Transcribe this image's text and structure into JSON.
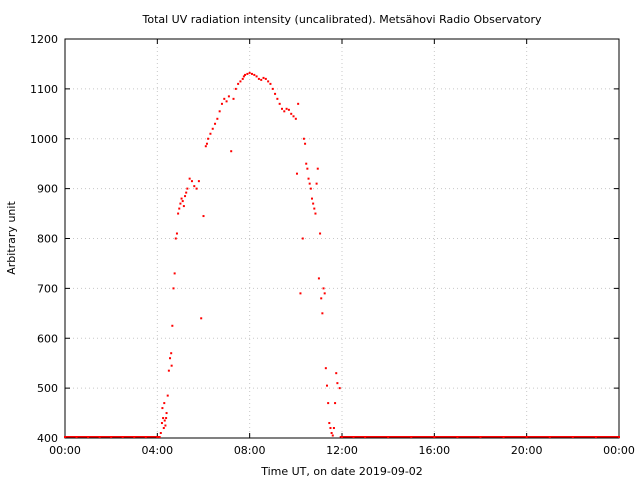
{
  "chart_data": {
    "type": "scatter",
    "title": "Total UV radiation intensity (uncalibrated). Metsähovi Radio Observatory",
    "xlabel": "Time UT, on date 2019-09-02",
    "ylabel": "Arbitrary unit",
    "xlim": [
      0,
      24
    ],
    "ylim": [
      400,
      1200
    ],
    "x_ticks": [
      0,
      4,
      8,
      12,
      16,
      20,
      24
    ],
    "x_tick_labels": [
      "00:00",
      "04:00",
      "08:00",
      "12:00",
      "16:00",
      "20:00",
      "00:00"
    ],
    "y_ticks": [
      400,
      500,
      600,
      700,
      800,
      900,
      1000,
      1100,
      1200
    ],
    "y_tick_labels": [
      "400",
      "500",
      "600",
      "700",
      "800",
      "900",
      "1000",
      "1100",
      "1200"
    ],
    "grid": true,
    "marker_color": "#ff0000",
    "series": [
      {
        "x": [
          0.0,
          0.5,
          1.0,
          1.5,
          2.0,
          2.5,
          3.0,
          3.5,
          4.0,
          4.1,
          4.15,
          4.2,
          4.22,
          4.25,
          4.28,
          4.3,
          4.32,
          4.35,
          4.38,
          4.4,
          4.45,
          4.5,
          4.55,
          4.6,
          4.62,
          4.65,
          4.7,
          4.75,
          4.8,
          4.85,
          4.9,
          4.95,
          5.0,
          5.05,
          5.1,
          5.15,
          5.2,
          5.25,
          5.3,
          5.4,
          5.5,
          5.6,
          5.7,
          5.8,
          5.9,
          6.0,
          6.1,
          6.15,
          6.2,
          6.3,
          6.4,
          6.5,
          6.6,
          6.7,
          6.8,
          6.9,
          7.0,
          7.1,
          7.2,
          7.3,
          7.4,
          7.5,
          7.6,
          7.7,
          7.75,
          7.8,
          7.9,
          8.0,
          8.1,
          8.2,
          8.3,
          8.4,
          8.5,
          8.6,
          8.7,
          8.8,
          8.9,
          9.0,
          9.1,
          9.2,
          9.3,
          9.4,
          9.5,
          9.6,
          9.7,
          9.8,
          9.9,
          10.0,
          10.05,
          10.1,
          10.2,
          10.3,
          10.35,
          10.4,
          10.45,
          10.5,
          10.55,
          10.6,
          10.65,
          10.7,
          10.75,
          10.8,
          10.85,
          10.9,
          10.95,
          11.0,
          11.05,
          11.1,
          11.15,
          11.2,
          11.25,
          11.3,
          11.35,
          11.4,
          11.45,
          11.5,
          11.55,
          11.6,
          11.65,
          11.7,
          11.75,
          11.8,
          11.9,
          12.0,
          12.5,
          13.0,
          14.0,
          15.0,
          16.0,
          17.0,
          18.0,
          19.0,
          20.0,
          21.0,
          22.0,
          23.0,
          24.0
        ],
        "y": [
          402,
          402,
          402,
          402,
          402,
          402,
          402,
          402,
          402,
          402,
          410,
          430,
          460,
          440,
          420,
          470,
          435,
          425,
          440,
          450,
          485,
          535,
          560,
          570,
          545,
          625,
          700,
          730,
          800,
          810,
          850,
          860,
          870,
          880,
          875,
          865,
          885,
          892,
          900,
          920,
          915,
          905,
          900,
          915,
          640,
          845,
          985,
          990,
          1000,
          1010,
          1020,
          1030,
          1040,
          1055,
          1070,
          1080,
          1075,
          1085,
          975,
          1080,
          1100,
          1110,
          1115,
          1120,
          1125,
          1128,
          1130,
          1132,
          1130,
          1128,
          1125,
          1120,
          1118,
          1122,
          1120,
          1115,
          1110,
          1100,
          1090,
          1080,
          1070,
          1060,
          1055,
          1060,
          1058,
          1050,
          1045,
          1040,
          930,
          1070,
          690,
          800,
          1000,
          990,
          950,
          940,
          920,
          910,
          900,
          880,
          870,
          860,
          850,
          910,
          940,
          720,
          810,
          680,
          650,
          700,
          690,
          540,
          505,
          470,
          430,
          420,
          410,
          405,
          420,
          470,
          530,
          510,
          500,
          402,
          402,
          402,
          402,
          402,
          402,
          402,
          402,
          402,
          402,
          402,
          402,
          402,
          402
        ]
      }
    ]
  }
}
